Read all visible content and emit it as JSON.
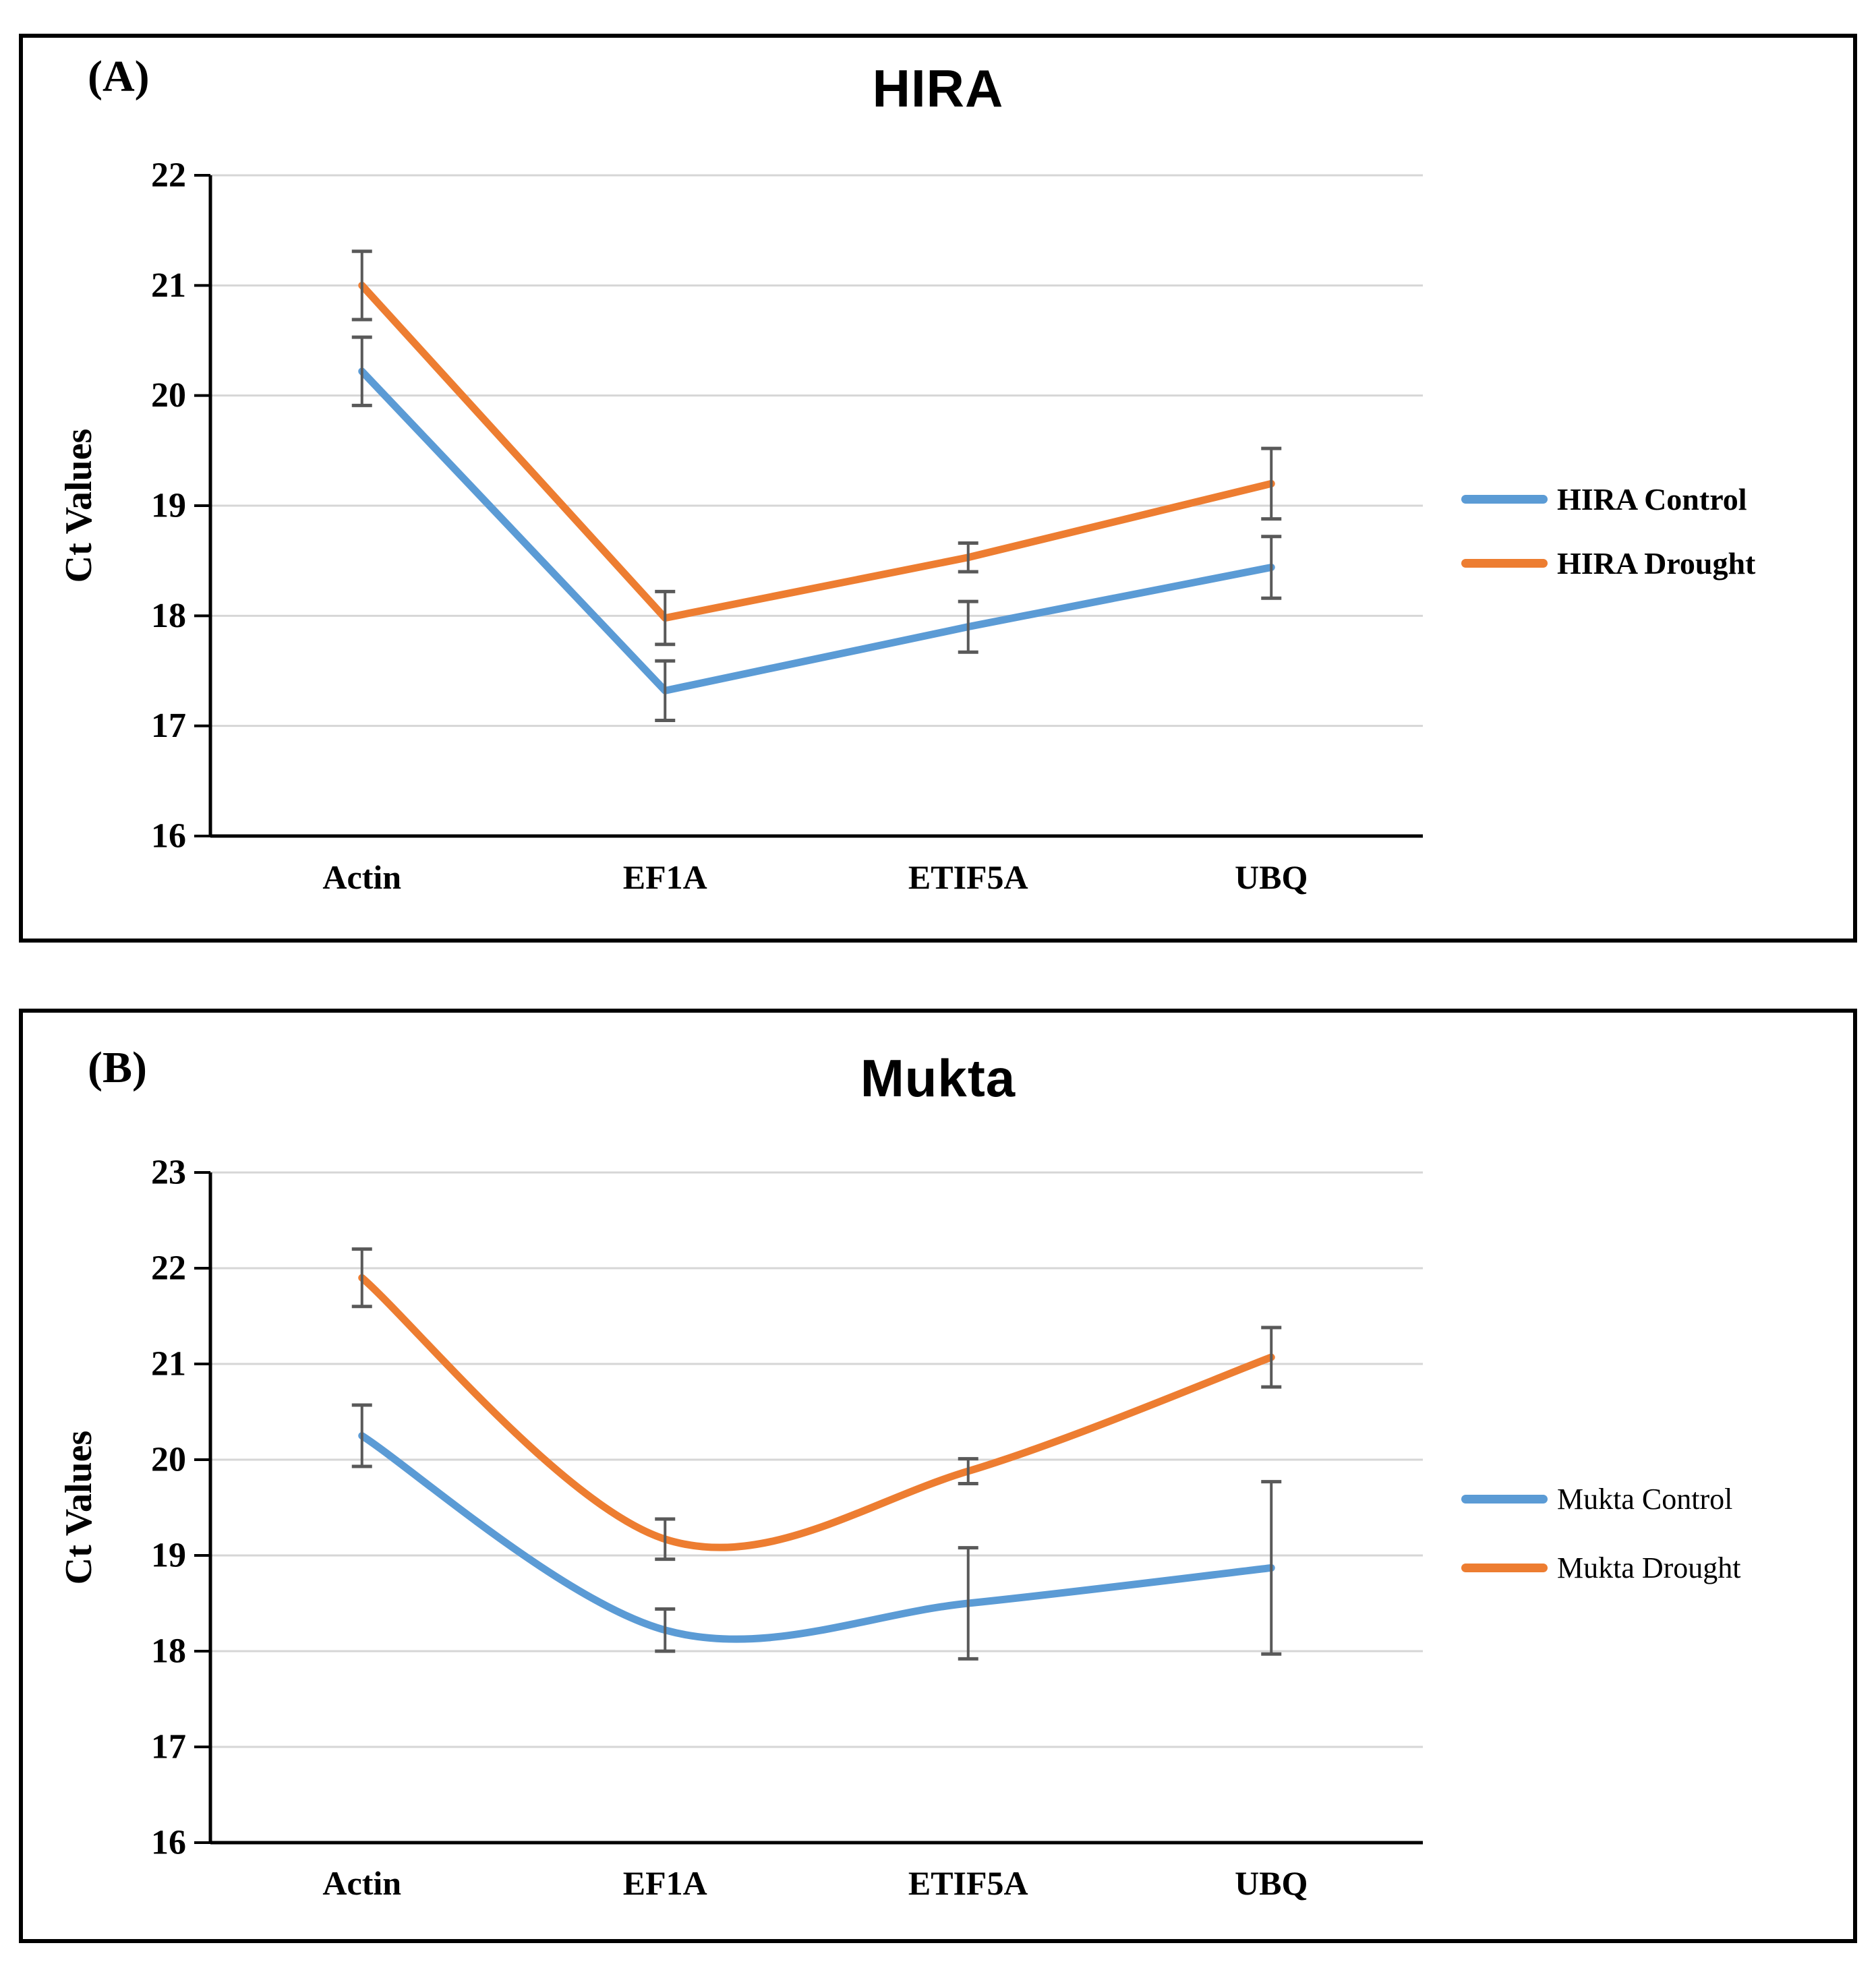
{
  "chart_data": [
    {
      "type": "line",
      "panel_label": "(A)",
      "title": "HIRA",
      "ylabel": "Ct Values",
      "xlabel": "",
      "categories": [
        "Actin",
        "EF1A",
        "ETIF5A",
        "UBQ"
      ],
      "ylim": [
        16,
        22
      ],
      "yticks": [
        22,
        21,
        20,
        19,
        18,
        17,
        16
      ],
      "grid": true,
      "smooth": false,
      "legend_position": "right",
      "error_bars": true,
      "series": [
        {
          "name": "HIRA Control",
          "color": "#5B9BD5",
          "values": [
            20.22,
            17.32,
            17.9,
            18.44
          ],
          "errors": [
            0.31,
            0.27,
            0.23,
            0.28
          ]
        },
        {
          "name": "HIRA Drought",
          "color": "#ED7D31",
          "values": [
            21.0,
            17.98,
            18.53,
            19.2
          ],
          "errors": [
            0.31,
            0.24,
            0.13,
            0.32
          ]
        }
      ],
      "styles": {
        "grid_color": "#D6D6D6",
        "axis_color": "#000000",
        "error_bar_color": "#595959"
      }
    },
    {
      "type": "line",
      "panel_label": "(B)",
      "title": "Mukta",
      "ylabel": "Ct Values",
      "xlabel": "",
      "categories": [
        "Actin",
        "EF1A",
        "ETIF5A",
        "UBQ"
      ],
      "ylim": [
        16,
        23
      ],
      "yticks": [
        23,
        22,
        21,
        20,
        19,
        18,
        17,
        16
      ],
      "grid": true,
      "smooth": true,
      "legend_position": "right",
      "error_bars": true,
      "series": [
        {
          "name": "Mukta Control",
          "color": "#5B9BD5",
          "values": [
            20.25,
            18.22,
            18.5,
            18.87
          ],
          "errors": [
            0.32,
            0.22,
            0.58,
            0.9
          ]
        },
        {
          "name": "Mukta Drought",
          "color": "#ED7D31",
          "values": [
            21.9,
            19.17,
            19.88,
            21.07
          ],
          "errors": [
            0.3,
            0.21,
            0.13,
            0.31
          ]
        }
      ],
      "styles": {
        "grid_color": "#D6D6D6",
        "axis_color": "#000000",
        "error_bar_color": "#595959"
      }
    }
  ]
}
